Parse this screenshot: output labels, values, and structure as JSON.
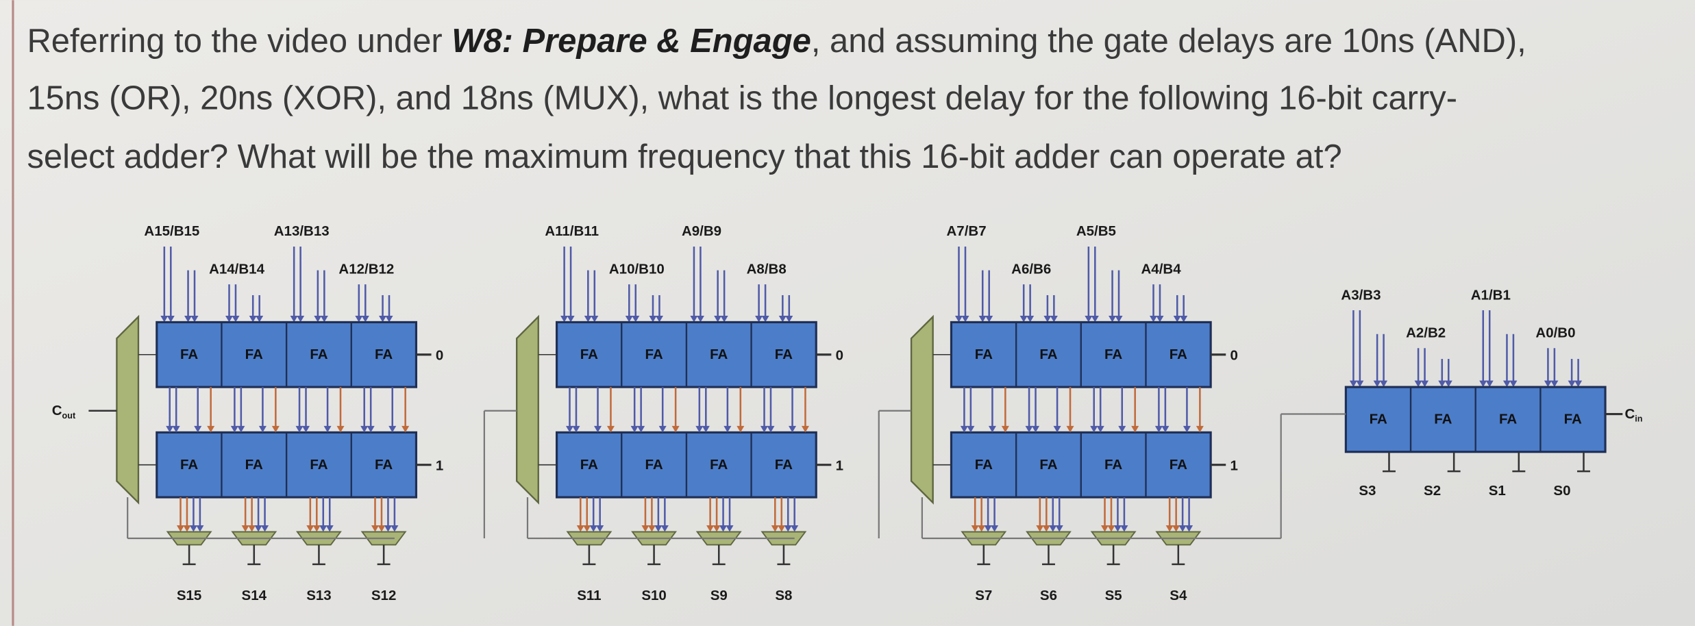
{
  "question": {
    "line1_start": "Referring to the video under ",
    "emphasis": "W8: Prepare & Engage",
    "line1_end": ", and assuming the gate delays are 10ns (AND),",
    "line2": "15ns (OR), 20ns (XOR), and 18ns (MUX), what is the longest delay for the following 16-bit carry-",
    "line3": "select adder? What will be the maximum frequency that this 16-bit adder can operate at?"
  },
  "diagram": {
    "fa_label": "FA",
    "cout": {
      "base": "C",
      "sub": "out"
    },
    "cin": {
      "base": "C",
      "sub": "in"
    },
    "blocks": [
      {
        "inputs": [
          "A15/B15",
          "A14/B14",
          "A13/B13",
          "A12/B12"
        ],
        "sums": [
          "S15",
          "S14",
          "S13",
          "S12"
        ],
        "constants": [
          "0",
          "1"
        ]
      },
      {
        "inputs": [
          "A11/B11",
          "A10/B10",
          "A9/B9",
          "A8/B8"
        ],
        "sums": [
          "S11",
          "S10",
          "S9",
          "S8"
        ],
        "constants": [
          "0",
          "1"
        ]
      },
      {
        "inputs": [
          "A7/B7",
          "A6/B6",
          "A5/B5",
          "A4/B4"
        ],
        "sums": [
          "S7",
          "S6",
          "S5",
          "S4"
        ],
        "constants": [
          "0",
          "1"
        ]
      },
      {
        "inputs": [
          "A3/B3",
          "A2/B2",
          "A1/B1",
          "A0/B0"
        ],
        "sums": [
          "S3",
          "S2",
          "S1",
          "S0"
        ]
      }
    ]
  }
}
